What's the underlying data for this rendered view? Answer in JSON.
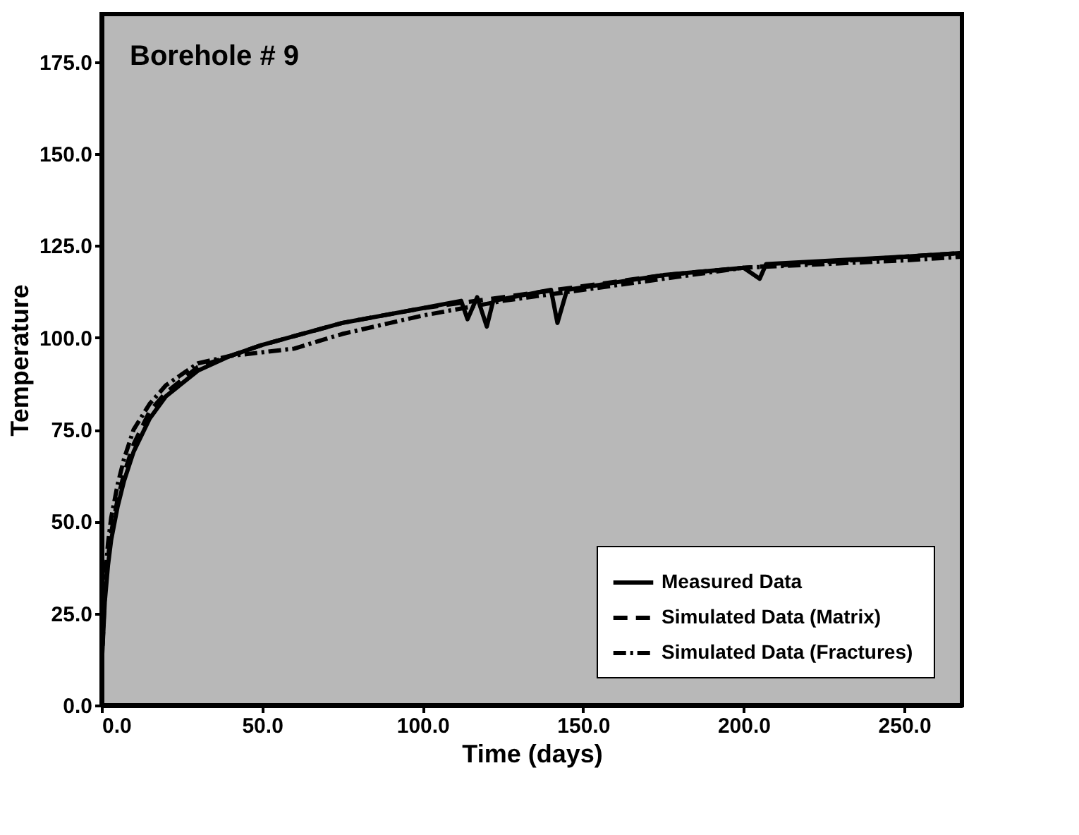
{
  "chart_data": {
    "type": "line",
    "xlabel": "Time (days)",
    "ylabel": "Temperature",
    "annotations": [
      "Borehole # 9"
    ],
    "xlim": [
      0,
      268
    ],
    "xticks": [
      {
        "value": 0,
        "label": "0.0"
      },
      {
        "value": 50,
        "label": "50.0"
      },
      {
        "value": 100,
        "label": "100.0"
      },
      {
        "value": 150,
        "label": "150.0"
      },
      {
        "value": 200,
        "label": "200.0"
      },
      {
        "value": 250,
        "label": "250.0"
      }
    ],
    "ylim": [
      0,
      188
    ],
    "yticks": [
      {
        "value": 0,
        "label": "0.0"
      },
      {
        "value": 25,
        "label": "25.0"
      },
      {
        "value": 50,
        "label": "50.0"
      },
      {
        "value": 75,
        "label": "75.0"
      },
      {
        "value": 100,
        "label": "100.0"
      },
      {
        "value": 125,
        "label": "125.0"
      },
      {
        "value": 150,
        "label": "150.0"
      },
      {
        "value": 175,
        "label": "175.0"
      }
    ],
    "legend": "bottom right",
    "grid": false,
    "marker": "none",
    "series": [
      {
        "name": "Measured Data",
        "color": "#000000",
        "line_style": "solid",
        "x": [
          0,
          1,
          2,
          3,
          5,
          7,
          10,
          15,
          20,
          30,
          40,
          50,
          75,
          100,
          112,
          114,
          117,
          120,
          122,
          140,
          142,
          145,
          175,
          200,
          205,
          207,
          250,
          268
        ],
        "values": [
          10,
          28,
          38,
          45,
          54,
          61,
          69,
          78,
          84,
          91,
          95,
          98,
          104,
          108,
          110,
          105,
          111,
          103,
          110,
          113,
          104,
          113,
          117,
          119,
          116,
          120,
          122,
          123
        ]
      },
      {
        "name": "Simulated Data  (Matrix)",
        "color": "#000000",
        "line_style": "dashed",
        "x": [
          0,
          1,
          2,
          3,
          5,
          7,
          10,
          15,
          20,
          30,
          40,
          50,
          75,
          100,
          125,
          150,
          175,
          200,
          250,
          268
        ],
        "values": [
          10,
          30,
          40,
          47,
          56,
          63,
          71,
          80,
          85,
          92,
          95,
          98,
          104,
          108,
          111,
          114,
          117,
          119,
          122,
          123
        ]
      },
      {
        "name": "Simulated Data  (Fractures)",
        "color": "#000000",
        "line_style": "dashdot",
        "x": [
          0,
          1,
          2,
          3,
          5,
          7,
          10,
          15,
          20,
          30,
          40,
          50,
          60,
          75,
          100,
          125,
          150,
          175,
          200,
          250,
          268
        ],
        "values": [
          10,
          33,
          44,
          51,
          60,
          67,
          75,
          82,
          87,
          93,
          95,
          96,
          97,
          101,
          106,
          110,
          113,
          116,
          119,
          121,
          122
        ]
      }
    ]
  }
}
